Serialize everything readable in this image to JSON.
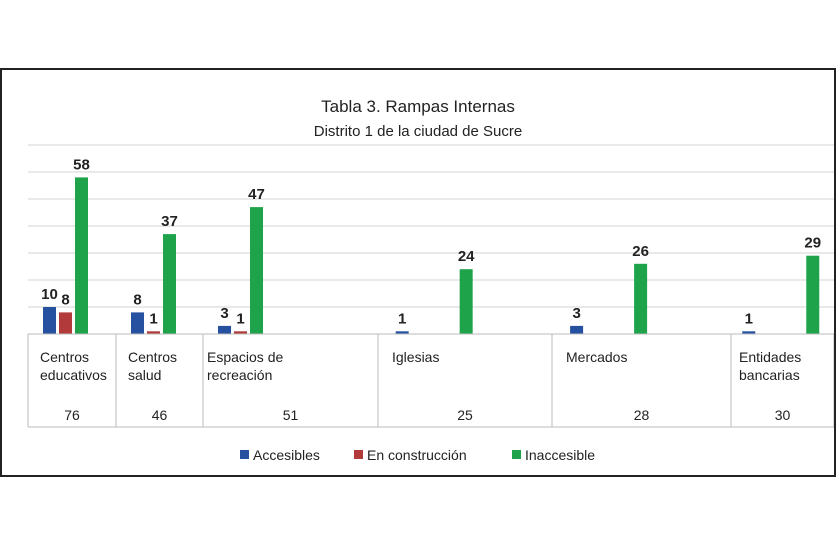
{
  "chart_data": {
    "type": "bar",
    "title": "Tabla 3. Rampas Internas",
    "subtitle": "Distrito 1 de  la ciudad de Sucre",
    "categories": [
      [
        "Centros",
        "educativos"
      ],
      [
        "Centros",
        "salud"
      ],
      [
        "Espacios de",
        "recreación"
      ],
      [
        "Iglesias"
      ],
      [
        "Mercados"
      ],
      [
        "Entidades",
        "bancarias"
      ]
    ],
    "totals": [
      "76",
      "46",
      "51",
      "25",
      "28",
      "30"
    ],
    "series": [
      {
        "name": "Accesibles",
        "color": "#2650a0",
        "values": [
          10,
          8,
          3,
          1,
          3,
          1
        ]
      },
      {
        "name": "En construcción",
        "color": "#b23a3a",
        "values": [
          8,
          1,
          1,
          0,
          0,
          0
        ]
      },
      {
        "name": "Inaccesible",
        "color": "#1ea34a",
        "values": [
          58,
          37,
          47,
          24,
          26,
          29
        ]
      }
    ],
    "ylim": [
      0,
      70
    ],
    "grid": true,
    "legend": "bottom"
  }
}
